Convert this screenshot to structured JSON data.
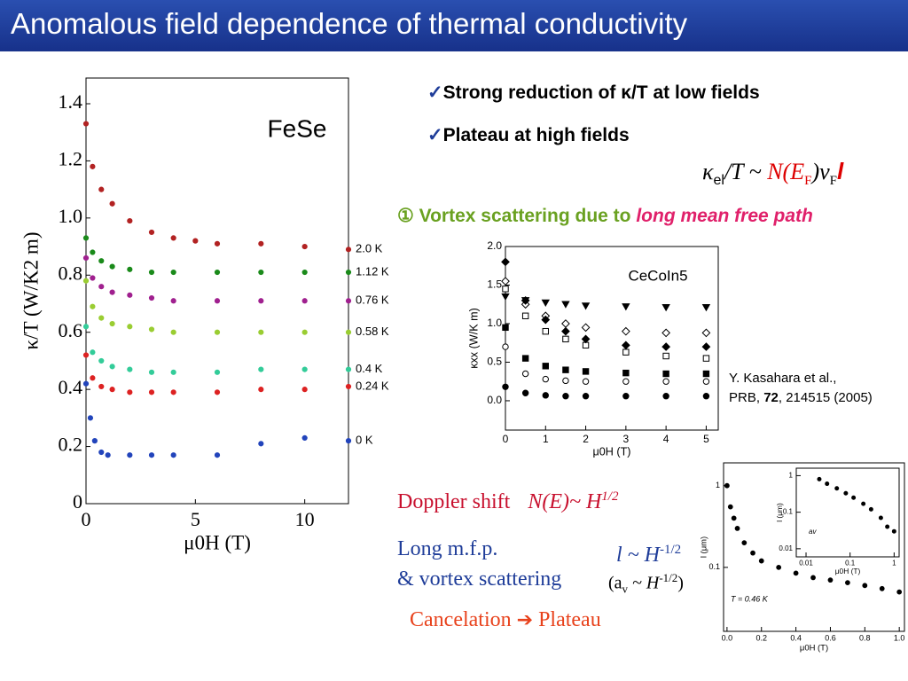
{
  "header": {
    "title": "Anomalous field dependence of thermal conductivity"
  },
  "bullets": [
    "Strong reduction of κ/T at low fields",
    "Plateau at high fields"
  ],
  "formula": {
    "parts": [
      "κ",
      "el",
      "/T ~ ",
      "N(E",
      "F",
      ")v",
      "F",
      "l"
    ]
  },
  "mechanism": {
    "lead": "① Vortex scattering due to ",
    "emphasis": "long mean free path"
  },
  "reference": {
    "authors": "Y. Kasahara et al.,",
    "journal": "PRB, ",
    "volume": "72",
    "rest": ", 214515 (2005)"
  },
  "notes": {
    "doppler": "Doppler shift",
    "doppler_formula": [
      "N(E)~ H",
      "1/2"
    ],
    "mfp": [
      "Long m.f.p.",
      "& vortex scattering"
    ],
    "mfp_formula": [
      "l ~ H",
      "-1/2"
    ],
    "av_formula": [
      "(a",
      "v",
      " ~ H",
      "-1/2",
      ")"
    ],
    "conclusion": [
      "Cancelation",
      "Plateau"
    ]
  },
  "main_chart": {
    "type": "scatter",
    "label": "FeSe",
    "xlabel": "μ0H (T)",
    "ylabel": "κ/T (W/K2 m)",
    "xlim": [
      0,
      12
    ],
    "ylim": [
      0,
      1.49
    ],
    "xticks": [
      0,
      5,
      10
    ],
    "yticks": [
      0,
      0.2,
      0.4,
      0.6,
      0.8,
      {
        "value": 1,
        "label": "1.0"
      },
      1.2,
      1.4
    ],
    "series": [
      {
        "name": "2.0 K",
        "color": "#b22222",
        "x": [
          0,
          0.3,
          0.7,
          1.2,
          2,
          3,
          4,
          5,
          6,
          8,
          10,
          12
        ],
        "values": [
          1.33,
          1.18,
          1.1,
          1.05,
          0.99,
          0.95,
          0.93,
          0.92,
          0.91,
          0.91,
          0.9,
          0.89
        ]
      },
      {
        "name": "1.12 K",
        "color": "#1a8a1a",
        "x": [
          0,
          0.3,
          0.7,
          1.2,
          2,
          3,
          4,
          6,
          8,
          10,
          12
        ],
        "values": [
          0.93,
          0.88,
          0.85,
          0.83,
          0.82,
          0.81,
          0.81,
          0.81,
          0.81,
          0.81,
          0.81
        ]
      },
      {
        "name": "0.76 K",
        "color": "#a0208f",
        "x": [
          0,
          0.3,
          0.7,
          1.2,
          2,
          3,
          4,
          6,
          8,
          10,
          12
        ],
        "values": [
          0.86,
          0.79,
          0.76,
          0.74,
          0.73,
          0.72,
          0.71,
          0.71,
          0.71,
          0.71,
          0.71
        ]
      },
      {
        "name": "0.58 K",
        "color": "#9acd32",
        "x": [
          0,
          0.3,
          0.7,
          1.2,
          2,
          3,
          4,
          6,
          8,
          10,
          12
        ],
        "values": [
          0.78,
          0.69,
          0.65,
          0.63,
          0.62,
          0.61,
          0.6,
          0.6,
          0.6,
          0.6,
          0.6
        ]
      },
      {
        "name": "0.4 K",
        "color": "#33cc99",
        "x": [
          0,
          0.3,
          0.7,
          1.2,
          2,
          3,
          4,
          6,
          8,
          10,
          12
        ],
        "values": [
          0.62,
          0.53,
          0.5,
          0.48,
          0.47,
          0.46,
          0.46,
          0.46,
          0.47,
          0.47,
          0.47
        ]
      },
      {
        "name": "0.24 K",
        "color": "#dd2222",
        "x": [
          0,
          0.3,
          0.7,
          1.2,
          2,
          3,
          4,
          6,
          8,
          10,
          12
        ],
        "values": [
          0.52,
          0.44,
          0.41,
          0.4,
          0.39,
          0.39,
          0.39,
          0.39,
          0.4,
          0.4,
          0.41
        ]
      },
      {
        "name": "0 K",
        "color": "#2244bb",
        "x": [
          0,
          0.2,
          0.4,
          0.7,
          1,
          2,
          3,
          4,
          6,
          8,
          10,
          12
        ],
        "values": [
          0.42,
          0.3,
          0.22,
          0.18,
          0.17,
          0.17,
          0.17,
          0.17,
          0.17,
          0.21,
          0.23,
          0.22
        ]
      }
    ]
  },
  "cecoin_chart": {
    "type": "scatter",
    "label": "CeCoIn5",
    "xlabel": "μ0H (T)",
    "ylabel": "κxx (W/K m)",
    "xlim": [
      0,
      5.3
    ],
    "ylim": [
      -0.38,
      2.0
    ],
    "xticks": [
      0,
      1,
      2,
      3,
      4,
      5
    ],
    "yticks": [
      {
        "value": 0,
        "label": "0.0"
      },
      0.5,
      {
        "value": 1,
        "label": "1.0"
      },
      1.5,
      {
        "value": 2,
        "label": "2.0"
      }
    ],
    "x": [
      0,
      0.5,
      1,
      1.5,
      2,
      3,
      4,
      5
    ],
    "series": [
      {
        "marker": "triangle",
        "color": "#000000",
        "values": [
          1.35,
          1.3,
          1.27,
          1.25,
          1.23,
          1.22,
          1.21,
          1.21
        ]
      },
      {
        "marker": "open-diamond",
        "color": "#000000",
        "values": [
          1.55,
          1.25,
          1.1,
          1.0,
          0.95,
          0.9,
          0.88,
          0.88
        ]
      },
      {
        "marker": "open-square",
        "color": "#000000",
        "values": [
          1.45,
          1.1,
          0.9,
          0.8,
          0.72,
          0.63,
          0.58,
          0.55
        ]
      },
      {
        "marker": "diamond",
        "color": "#000000",
        "values": [
          1.8,
          1.3,
          1.05,
          0.9,
          0.8,
          0.72,
          0.7,
          0.7
        ]
      },
      {
        "marker": "square",
        "color": "#000000",
        "values": [
          0.95,
          0.55,
          0.45,
          0.4,
          0.38,
          0.36,
          0.35,
          0.35
        ]
      },
      {
        "marker": "open-circle",
        "color": "#000000",
        "values": [
          0.7,
          0.35,
          0.28,
          0.26,
          0.25,
          0.25,
          0.25,
          0.25
        ]
      },
      {
        "marker": "circle",
        "color": "#000000",
        "values": [
          0.18,
          0.1,
          0.07,
          0.06,
          0.06,
          0.06,
          0.06,
          0.06
        ]
      }
    ]
  },
  "mfp_chart": {
    "type": "scatter",
    "xlabel": "μ0H (T)",
    "ylabel": "l (μm)",
    "annotation": "T = 0.46 K",
    "xlim": [
      -0.02,
      1.03
    ],
    "ylim": [
      0.0165,
      1.9
    ],
    "ylog": true,
    "xticks": [
      {
        "value": 0,
        "label": "0.0"
      },
      0.2,
      0.4,
      0.6,
      0.8,
      {
        "value": 1,
        "label": "1.0"
      }
    ],
    "yticks": [
      0.1,
      1
    ],
    "x": [
      0,
      0.02,
      0.04,
      0.06,
      0.1,
      0.15,
      0.2,
      0.3,
      0.4,
      0.5,
      0.6,
      0.7,
      0.8,
      0.9,
      1.0
    ],
    "series": [
      {
        "marker": "circle",
        "color": "#000000",
        "values": [
          1.0,
          0.55,
          0.4,
          0.3,
          0.2,
          0.15,
          0.12,
          0.1,
          0.085,
          0.075,
          0.07,
          0.065,
          0.06,
          0.055,
          0.05
        ]
      }
    ]
  },
  "mfp_inset": {
    "type": "scatter",
    "xlabel": "μ0H (T)",
    "ylabel": "l (μm)",
    "annotation": "av",
    "xlim": [
      0.006,
      1.3
    ],
    "ylim": [
      0.006,
      1.6
    ],
    "xlog": true,
    "ylog": true,
    "xticks": [
      0.01,
      0.1,
      1
    ],
    "yticks": [
      0.01,
      0.1,
      1
    ],
    "x": [
      0.02,
      0.03,
      0.05,
      0.08,
      0.12,
      0.2,
      0.3,
      0.5,
      0.7,
      1.0
    ],
    "series": [
      {
        "marker": "circle",
        "color": "#000000",
        "values": [
          0.8,
          0.6,
          0.45,
          0.33,
          0.25,
          0.17,
          0.12,
          0.07,
          0.04,
          0.03
        ]
      }
    ]
  }
}
